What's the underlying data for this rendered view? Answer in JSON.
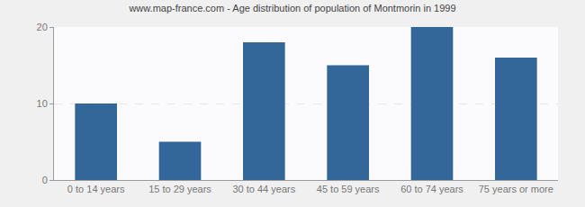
{
  "chart_data": {
    "type": "bar",
    "title": "www.map-france.com - Age distribution of population of Montmorin in 1999",
    "categories": [
      "0 to 14 years",
      "15 to 29 years",
      "30 to 44 years",
      "45 to 59 years",
      "60 to 74 years",
      "75 years or more"
    ],
    "values": [
      10,
      5,
      18,
      15,
      20,
      16
    ],
    "color": "#336699",
    "ylim": [
      0,
      20
    ],
    "yticks": [
      0,
      10,
      20
    ],
    "grid": true
  }
}
